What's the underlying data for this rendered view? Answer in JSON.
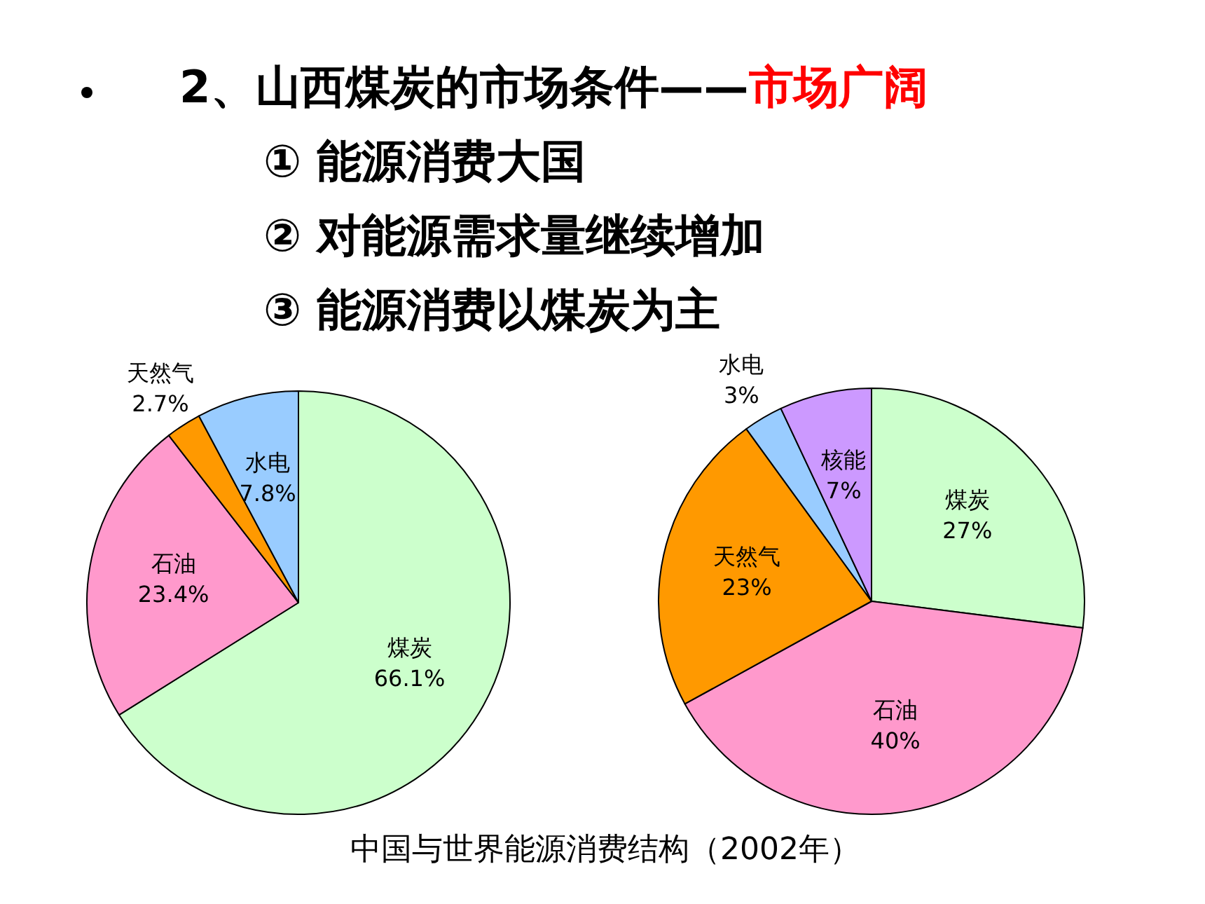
{
  "chart_data": [
    {
      "type": "other",
      "title": "2、山西煤炭的市场条件——",
      "subtitle": "市场广阔",
      "annotations": [
        "① 能源消费大国",
        "② 对能源需求量继续增加",
        "③ 能源消费以煤炭为主"
      ]
    },
    {
      "type": "pie",
      "annotations": [
        "中国与世界能源消费结构（2002年）"
      ],
      "categories": [
        "煤炭",
        "石油",
        "天然气",
        "水电"
      ],
      "values": [
        66.1,
        23.4,
        2.7,
        7.8
      ],
      "colors": [
        "#ccffcc",
        "#ff99cc",
        "#ff9900",
        "#99ccff"
      ],
      "value_labels": [
        "66.1%",
        "23.4%",
        "2.7%",
        "7.8%"
      ]
    },
    {
      "type": "pie",
      "categories": [
        "煤炭",
        "石油",
        "天然气",
        "水电",
        "核能"
      ],
      "values": [
        27,
        40,
        23,
        3,
        7
      ],
      "colors": [
        "#ccffcc",
        "#ff99cc",
        "#ff9900",
        "#99ccff",
        "#cc99ff"
      ],
      "value_labels": [
        "27%",
        "40%",
        "23%",
        "3%",
        "7%"
      ]
    }
  ]
}
